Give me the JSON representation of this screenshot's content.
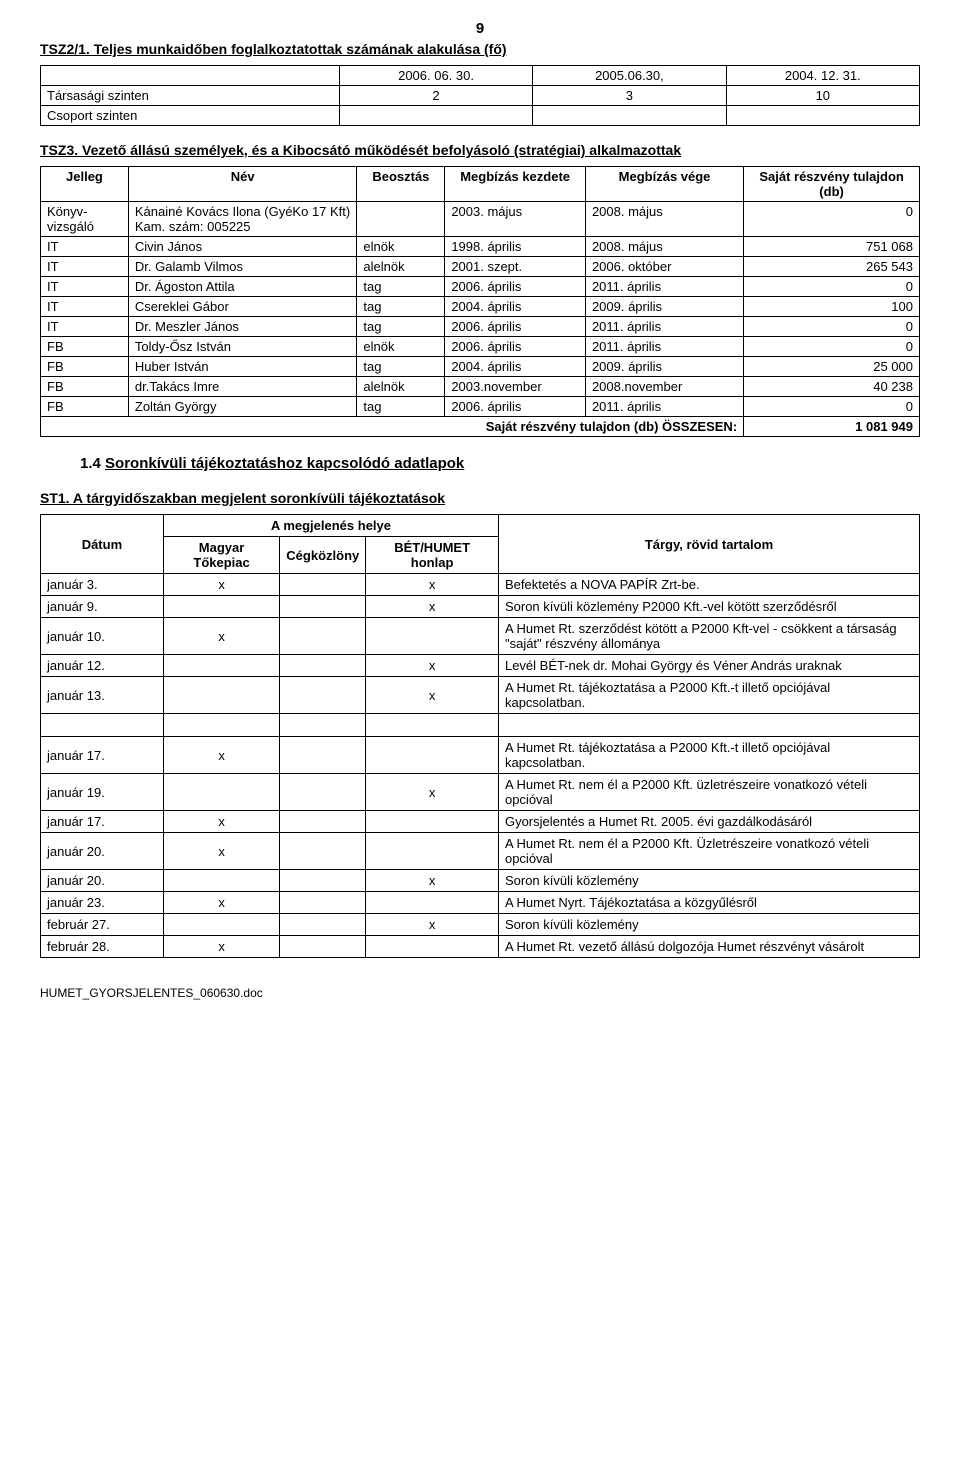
{
  "pageNumber": "9",
  "tsz2": {
    "title": "TSZ2/1. Teljes munkaidőben foglalkoztatottak számának alakulása (fő)",
    "headers": [
      "",
      "2006. 06. 30.",
      "2005.06.30,",
      "2004. 12. 31."
    ],
    "rows": [
      [
        "Társasági szinten",
        "2",
        "3",
        "10"
      ],
      [
        "Csoport szinten",
        "",
        "",
        ""
      ]
    ]
  },
  "tsz3": {
    "title": "TSZ3. Vezető állású személyek, és a Kibocsátó működését befolyásoló (stratégiai) alkalmazottak",
    "headers": [
      "Jelleg",
      "Név",
      "Beosztás",
      "Megbízás kezdete",
      "Megbízás vége",
      "Saját részvény tulajdon (db)"
    ],
    "rows": [
      {
        "jelleg": "Könyv-\nvizsgáló",
        "nev": "Kánainé Kovács Ilona (GyéKo 17 Kft) Kam. szám: 005225",
        "beosztas": "",
        "kezdet": "2003. május",
        "vege": "2008. május",
        "db": "0"
      },
      {
        "jelleg": "IT",
        "nev": "Civin János",
        "beosztas": "elnök",
        "kezdet": "1998. április",
        "vege": "2008. május",
        "db": "751 068"
      },
      {
        "jelleg": "IT",
        "nev": "Dr. Galamb Vilmos",
        "beosztas": "alelnök",
        "kezdet": "2001. szept.",
        "vege": "2006. október",
        "db": "265 543"
      },
      {
        "jelleg": "IT",
        "nev": "Dr. Ágoston Attila",
        "beosztas": "tag",
        "kezdet": "2006. április",
        "vege": "2011. április",
        "db": "0"
      },
      {
        "jelleg": "IT",
        "nev": "Csereklei Gábor",
        "beosztas": "tag",
        "kezdet": "2004. április",
        "vege": "2009. április",
        "db": "100"
      },
      {
        "jelleg": "IT",
        "nev": "Dr. Meszler János",
        "beosztas": "tag",
        "kezdet": "2006. április",
        "vege": "2011. április",
        "db": "0"
      },
      {
        "jelleg": "FB",
        "nev": "Toldy-Ősz István",
        "beosztas": "elnök",
        "kezdet": "2006. április",
        "vege": "2011. április",
        "db": "0"
      },
      {
        "jelleg": "FB",
        "nev": "Huber István",
        "beosztas": "tag",
        "kezdet": "2004. április",
        "vege": "2009. április",
        "db": "25 000"
      },
      {
        "jelleg": "FB",
        "nev": "dr.Takács Imre",
        "beosztas": "alelnök",
        "kezdet": "2003.november",
        "vege": "2008.november",
        "db": "40 238"
      },
      {
        "jelleg": "FB",
        "nev": "Zoltán György",
        "beosztas": "tag",
        "kezdet": "2006. április",
        "vege": "2011. április",
        "db": "0"
      }
    ],
    "sumLabel": "Saját részvény tulajdon (db) ÖSSZESEN:",
    "sumValue": "1 081 949"
  },
  "section14": {
    "num": "1.4",
    "title": "Soronkívüli tájékoztatáshoz kapcsolódó adatlapok"
  },
  "st1": {
    "title": "ST1. A tárgyidőszakban megjelent soronkívüli tájékoztatások",
    "headerGroupLabel": "A megjelenés helye",
    "headers": {
      "datum": "Dátum",
      "magyar": "Magyar Tőkepiac",
      "cegkozlony": "Cégközlöny",
      "bet": "BÉT/HUMET honlap",
      "targy": "Tárgy, rövid tartalom"
    },
    "rows": [
      {
        "datum": "január 3.",
        "magyar": "x",
        "cegkozlony": "",
        "bet": "x",
        "targy": "Befektetés a NOVA PAPÍR Zrt-be."
      },
      {
        "datum": "január 9.",
        "magyar": "",
        "cegkozlony": "",
        "bet": "x",
        "targy": "Soron kívüli közlemény P2000 Kft.-vel kötött szerződésről"
      },
      {
        "datum": "január 10.",
        "magyar": "x",
        "cegkozlony": "",
        "bet": "",
        "targy": "A Humet Rt. szerződést kötött a P2000 Kft-vel - csökkent a társaság \"saját\" részvény állománya"
      },
      {
        "datum": "január 12.",
        "magyar": "",
        "cegkozlony": "",
        "bet": "x",
        "targy": "Levél BÉT-nek dr. Mohai György és Véner András uraknak"
      },
      {
        "datum": "január 13.",
        "magyar": "",
        "cegkozlony": "",
        "bet": "x",
        "targy": "A Humet Rt. tájékoztatása a P2000 Kft.-t illető opciójával kapcsolatban."
      }
    ],
    "rows2": [
      {
        "datum": "január 17.",
        "magyar": "x",
        "cegkozlony": "",
        "bet": "",
        "targy": "A Humet Rt. tájékoztatása a P2000 Kft.-t illető opciójával kapcsolatban."
      },
      {
        "datum": "január 19.",
        "magyar": "",
        "cegkozlony": "",
        "bet": "x",
        "targy": "A Humet Rt. nem él a P2000 Kft. üzletrészeire vonatkozó vételi opcióval"
      },
      {
        "datum": "január 17.",
        "magyar": "x",
        "cegkozlony": "",
        "bet": "",
        "targy": "Gyorsjelentés a Humet Rt. 2005. évi gazdálkodásáról"
      },
      {
        "datum": "január 20.",
        "magyar": "x",
        "cegkozlony": "",
        "bet": "",
        "targy": "A Humet Rt. nem él a P2000 Kft. Üzletrészeire vonatkozó vételi opcióval"
      },
      {
        "datum": "január 20.",
        "magyar": "",
        "cegkozlony": "",
        "bet": "x",
        "targy": "Soron kívüli közlemény"
      },
      {
        "datum": "január 23.",
        "magyar": "x",
        "cegkozlony": "",
        "bet": "",
        "targy": "A Humet Nyrt. Tájékoztatása a közgyűlésről"
      },
      {
        "datum": "február 27.",
        "magyar": "",
        "cegkozlony": "",
        "bet": "x",
        "targy": "Soron kívüli közlemény"
      },
      {
        "datum": "február 28.",
        "magyar": "x",
        "cegkozlony": "",
        "bet": "",
        "targy": "A Humet Rt. vezető állású dolgozója Humet részvényt vásárolt"
      }
    ]
  },
  "footer": "HUMET_GYORSJELENTES_060630.doc"
}
